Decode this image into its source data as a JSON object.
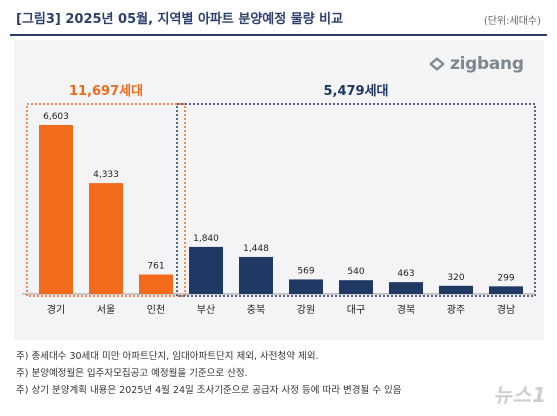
{
  "header": {
    "title": "[그림3] 2025년 05월, 지역별 아파트 분양예정 물량 비교",
    "unit": "(단위:세대수)"
  },
  "logo": {
    "text": "zigbang",
    "icon": "zigbang-logo-icon"
  },
  "chart_data": {
    "type": "bar",
    "categories": [
      "경기",
      "서울",
      "인천",
      "부산",
      "충북",
      "강원",
      "대구",
      "경북",
      "광주",
      "경남"
    ],
    "values": [
      6603,
      4333,
      761,
      1840,
      1448,
      569,
      540,
      463,
      320,
      299
    ],
    "value_labels": [
      "6,603",
      "4,333",
      "761",
      "1,840",
      "1,448",
      "569",
      "540",
      "463",
      "320",
      "299"
    ],
    "bar_colors": [
      "#f26a1b",
      "#f26a1b",
      "#f26a1b",
      "#1f3864",
      "#1f3864",
      "#1f3864",
      "#1f3864",
      "#1f3864",
      "#1f3864",
      "#1f3864"
    ],
    "ylim": [
      0,
      6603
    ],
    "grid": false,
    "groups": [
      {
        "label": "11,697세대",
        "color": "#f26a1b",
        "start": 0,
        "end": 2
      },
      {
        "label": "5,479세대",
        "color": "#1f3864",
        "start": 3,
        "end": 9
      }
    ]
  },
  "notes": [
    "주) 총세대수 30세대 미만 아파트단지, 임대아파트단지 제외, 사전청약 제외.",
    "주) 분양예정월은 입주자모집공고 예정월을 기준으로 산정.",
    "주) 상기 분양계획 내용은 2025년 4월 24일 조사기준으로 공급자 사정 등에 따라 변경될 수 있음"
  ],
  "watermark": "뉴스1"
}
